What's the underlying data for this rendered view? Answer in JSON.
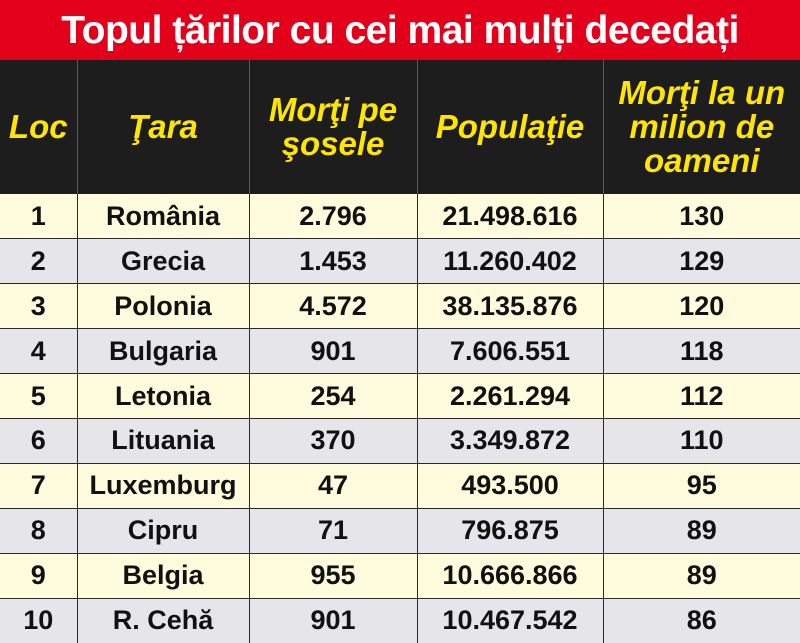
{
  "title": "Topul țărilor cu cei mai mulți decedați",
  "chart_data": {
    "type": "table",
    "title": "Topul țărilor cu cei mai mulți decedați",
    "columns": [
      "Loc",
      "Ţara",
      "Morţi pe şosele",
      "Populaţie",
      "Morţi la un milion de oameni"
    ],
    "rows": [
      [
        "1",
        "România",
        "2.796",
        "21.498.616",
        "130"
      ],
      [
        "2",
        "Grecia",
        "1.453",
        "11.260.402",
        "129"
      ],
      [
        "3",
        "Polonia",
        "4.572",
        "38.135.876",
        "120"
      ],
      [
        "4",
        "Bulgaria",
        "901",
        "7.606.551",
        "118"
      ],
      [
        "5",
        "Letonia",
        "254",
        "2.261.294",
        "112"
      ],
      [
        "6",
        "Lituania",
        "370",
        "3.349.872",
        "110"
      ],
      [
        "7",
        "Luxemburg",
        "47",
        "493.500",
        "95"
      ],
      [
        "8",
        "Cipru",
        "71",
        "796.875",
        "89"
      ],
      [
        "9",
        "Belgia",
        "955",
        "10.666.866",
        "89"
      ],
      [
        "10",
        "R. Cehă",
        "901",
        "10.467.542",
        "86"
      ]
    ]
  }
}
